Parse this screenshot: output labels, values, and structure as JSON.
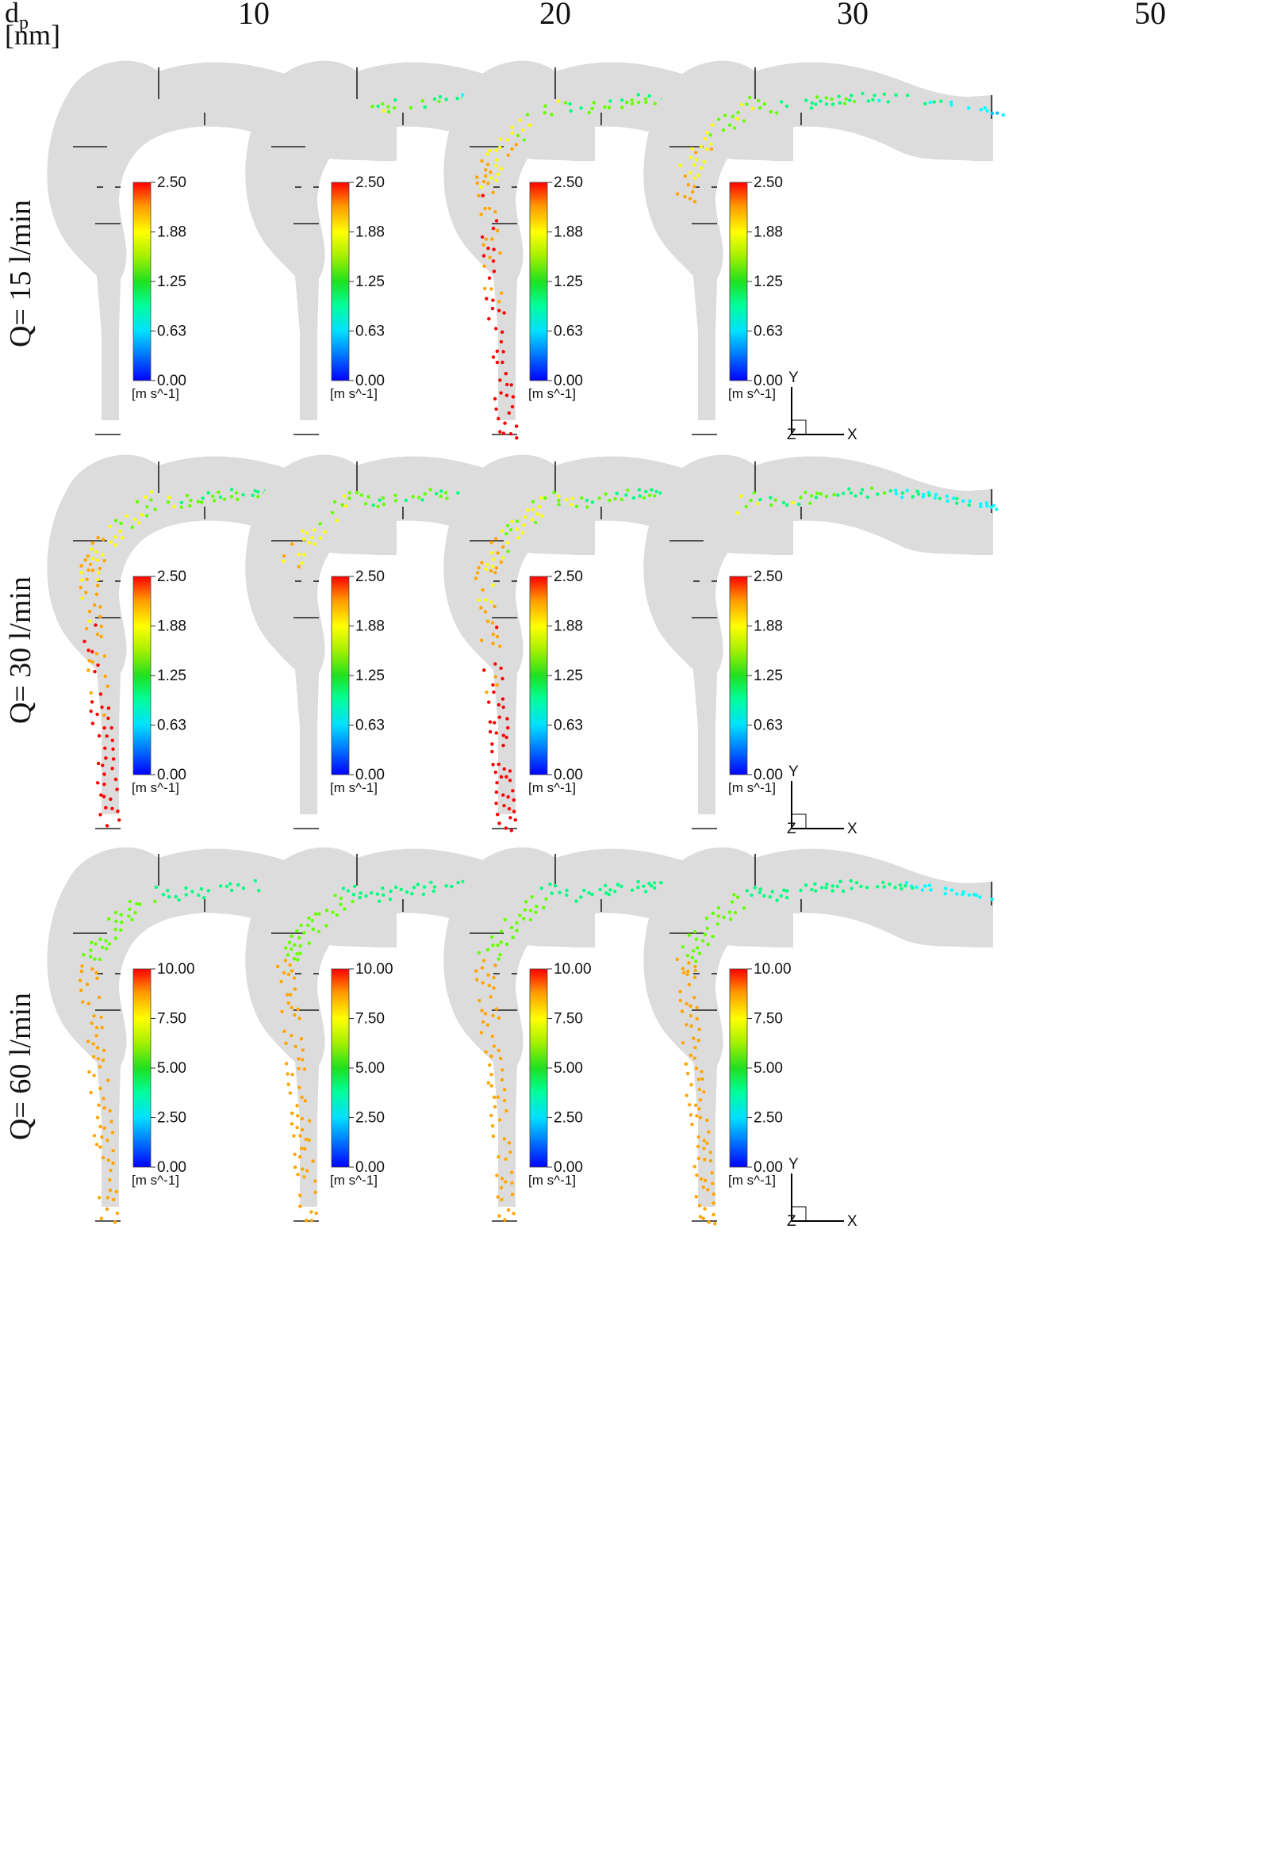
{
  "header": {
    "dp_symbol": "d",
    "dp_subscript": "p",
    "dp_unit": "[nm]",
    "columns": [
      "10",
      "20",
      "30",
      "50"
    ]
  },
  "rows": [
    {
      "label": "Q= 15 l/min",
      "legend": {
        "ticks": [
          "2.50",
          "1.88",
          "1.25",
          "0.63",
          "0.00"
        ],
        "unit": "[m s^-1]",
        "max": 2.5
      },
      "penetration": [
        0.1,
        0.32,
        1.0,
        0.62
      ]
    },
    {
      "label": "Q= 30 l/min",
      "legend": {
        "ticks": [
          "2.50",
          "1.88",
          "1.25",
          "0.63",
          "0.00"
        ],
        "unit": "[m s^-1]",
        "max": 2.5
      },
      "penetration": [
        1.0,
        0.55,
        1.0,
        0.4
      ]
    },
    {
      "label": "Q= 60 l/min",
      "legend": {
        "ticks": [
          "10.00",
          "7.50",
          "5.00",
          "2.50",
          "0.00"
        ],
        "unit": "[m s^-1]",
        "max": 10
      },
      "penetration": [
        1.0,
        1.0,
        1.0,
        1.0
      ]
    }
  ],
  "axes": {
    "y": "Y",
    "x": "X",
    "z": "Z"
  },
  "colormap": [
    "#0000ff",
    "#00bfff",
    "#00ffff",
    "#00ff80",
    "#66ff00",
    "#ffff00",
    "#ffa500",
    "#ff0000"
  ]
}
